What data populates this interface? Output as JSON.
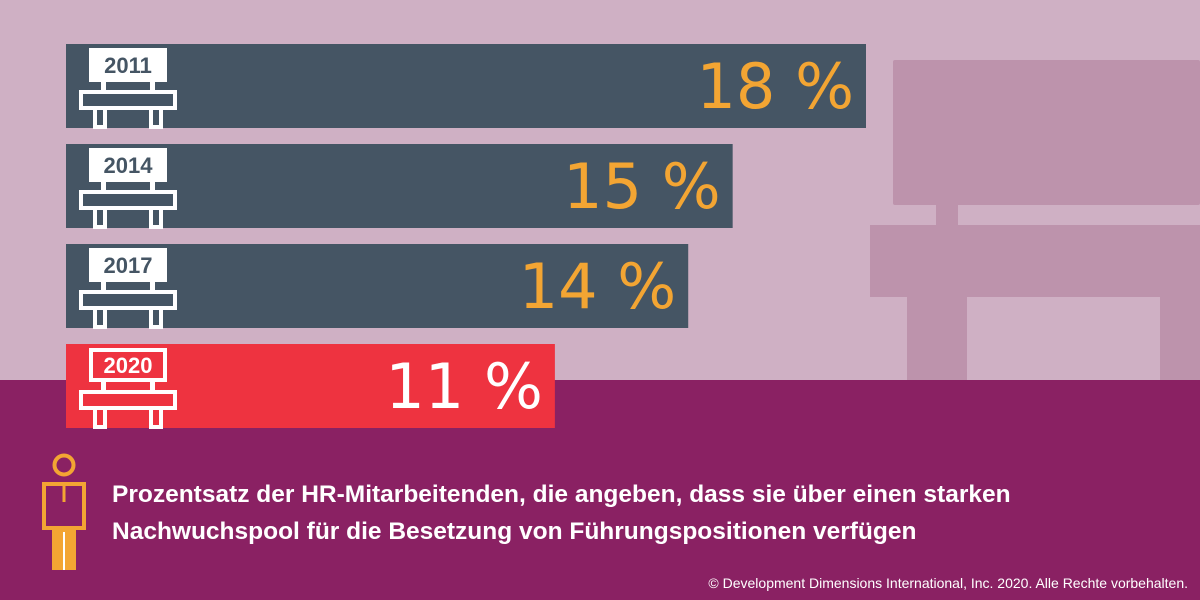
{
  "colors": {
    "background_top": "#CFB0C4",
    "background_bottom": "#8A2163",
    "bar_default": "#455564",
    "bar_highlight": "#EE3340",
    "value_default": "#F3A533",
    "value_highlight": "#FFFFFF",
    "decor_bench": "#BD93AC",
    "person_icon": "#F3A533"
  },
  "icons": {
    "bench": "bench-icon",
    "person": "person-icon"
  },
  "chart_data": {
    "type": "bar",
    "orientation": "horizontal",
    "categories": [
      "2011",
      "2014",
      "2017",
      "2020"
    ],
    "values": [
      18,
      15,
      14,
      11
    ],
    "value_labels": [
      "18 %",
      "15 %",
      "14 %",
      "11 %"
    ],
    "highlight_index": 3,
    "title": "Prozentsatz der HR-Mitarbeitenden, die angeben, dass sie über einen starken Nachwuchspool für die Besetzung von Führungspositionen verfügen",
    "xlim": [
      0,
      18
    ],
    "grid": false,
    "legend": "none"
  },
  "caption": {
    "line1": "Prozentsatz der HR-Mitarbeitenden, die angeben, dass sie über einen starken",
    "line2": "Nachwuchspool für die Besetzung von Führungspositionen verfügen"
  },
  "footer": {
    "copyright": "© Development Dimensions International, Inc. 2020. Alle Rechte vorbehalten."
  }
}
